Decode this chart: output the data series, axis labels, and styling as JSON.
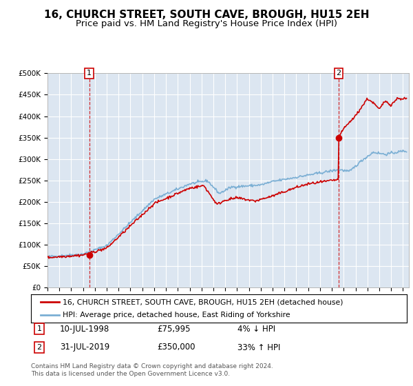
{
  "title": "16, CHURCH STREET, SOUTH CAVE, BROUGH, HU15 2EH",
  "subtitle": "Price paid vs. HM Land Registry's House Price Index (HPI)",
  "ylim": [
    0,
    500000
  ],
  "yticks": [
    0,
    50000,
    100000,
    150000,
    200000,
    250000,
    300000,
    350000,
    400000,
    450000,
    500000
  ],
  "ytick_labels": [
    "£0",
    "£50K",
    "£100K",
    "£150K",
    "£200K",
    "£250K",
    "£300K",
    "£350K",
    "£400K",
    "£450K",
    "£500K"
  ],
  "xlim_start": 1995.0,
  "xlim_end": 2025.5,
  "plot_bg_color": "#dce6f1",
  "title_fontsize": 11,
  "subtitle_fontsize": 9.5,
  "transaction1_date": 1998.53,
  "transaction1_price": 75995,
  "transaction2_date": 2019.58,
  "transaction2_price": 350000,
  "legend_line1": "16, CHURCH STREET, SOUTH CAVE, BROUGH, HU15 2EH (detached house)",
  "legend_line2": "HPI: Average price, detached house, East Riding of Yorkshire",
  "footnote1": "Contains HM Land Registry data © Crown copyright and database right 2024.",
  "footnote2": "This data is licensed under the Open Government Licence v3.0.",
  "annotation1_label": "1",
  "annotation1_date_str": "10-JUL-1998",
  "annotation1_price_str": "£75,995",
  "annotation1_hpi_str": "4% ↓ HPI",
  "annotation2_label": "2",
  "annotation2_date_str": "31-JUL-2019",
  "annotation2_price_str": "£350,000",
  "annotation2_hpi_str": "33% ↑ HPI",
  "hpi_color": "#7bafd4",
  "price_color": "#cc0000",
  "dot_color": "#cc0000"
}
